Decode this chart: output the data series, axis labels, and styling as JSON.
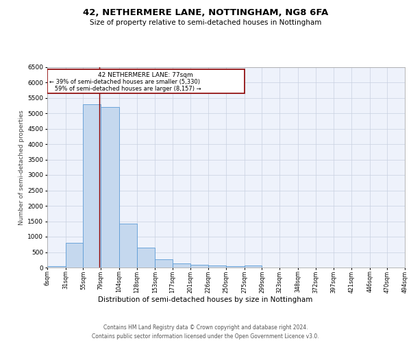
{
  "title": "42, NETHERMERE LANE, NOTTINGHAM, NG8 6FA",
  "subtitle": "Size of property relative to semi-detached houses in Nottingham",
  "xlabel": "Distribution of semi-detached houses by size in Nottingham",
  "ylabel": "Number of semi-detached properties",
  "footer_line1": "Contains HM Land Registry data © Crown copyright and database right 2024.",
  "footer_line2": "Contains public sector information licensed under the Open Government Licence v3.0.",
  "property_size": 77,
  "property_label": "42 NETHERMERE LANE: 77sqm",
  "pct_smaller": 39,
  "count_smaller": 5330,
  "pct_larger": 59,
  "count_larger": 8157,
  "bins": [
    6,
    31,
    55,
    79,
    104,
    128,
    153,
    177,
    201,
    226,
    250,
    275,
    299,
    323,
    348,
    372,
    397,
    421,
    446,
    470,
    494
  ],
  "bin_labels": [
    "6sqm",
    "31sqm",
    "55sqm",
    "79sqm",
    "104sqm",
    "128sqm",
    "153sqm",
    "177sqm",
    "201sqm",
    "226sqm",
    "250sqm",
    "275sqm",
    "299sqm",
    "323sqm",
    "348sqm",
    "372sqm",
    "397sqm",
    "421sqm",
    "446sqm",
    "470sqm",
    "494sqm"
  ],
  "bar_heights": [
    50,
    790,
    5300,
    5200,
    1420,
    635,
    260,
    130,
    85,
    70,
    55,
    70,
    0,
    0,
    0,
    0,
    0,
    0,
    0,
    0
  ],
  "bar_color": "#c5d8ee",
  "bar_edge_color": "#5b9bd5",
  "line_color": "#8b0000",
  "annotation_box_color": "#8b0000",
  "bg_color": "#eef2fb",
  "grid_color": "#c8d0e0",
  "ylim": [
    0,
    6500
  ],
  "yticks": [
    0,
    500,
    1000,
    1500,
    2000,
    2500,
    3000,
    3500,
    4000,
    4500,
    5000,
    5500,
    6000,
    6500
  ]
}
